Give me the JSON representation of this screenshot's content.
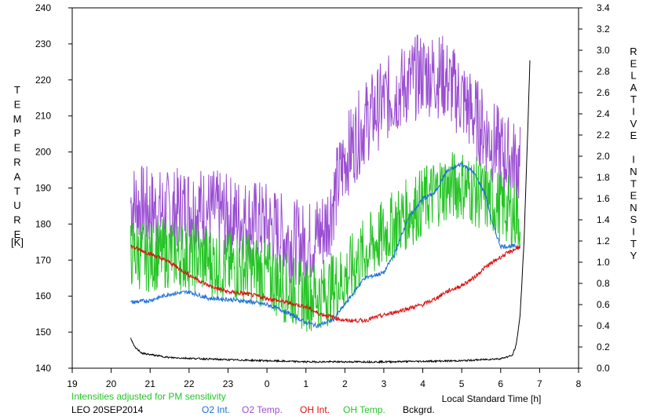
{
  "chart_data": {
    "type": "line",
    "left_axis": {
      "label": "TEMPERATURE",
      "unit": "[K]",
      "range": [
        140,
        240
      ],
      "ticks": [
        "140",
        "150",
        "160",
        "170",
        "180",
        "190",
        "200",
        "210",
        "220",
        "230",
        "240"
      ]
    },
    "right_axis": {
      "label": "RELATIVE INTENSITY",
      "range": [
        0.0,
        3.4
      ],
      "ticks": [
        "0.0",
        "0.2",
        "0.4",
        "0.6",
        "0.8",
        "1.0",
        "1.2",
        "1.4",
        "1.6",
        "1.8",
        "2.0",
        "2.2",
        "2.4",
        "2.6",
        "2.8",
        "3.0",
        "3.2",
        "3.4"
      ]
    },
    "x_axis": {
      "label": "Local Standard Time [h]",
      "ticks": [
        "19",
        "20",
        "21",
        "22",
        "23",
        "0",
        "1",
        "2",
        "3",
        "4",
        "5",
        "6",
        "7",
        "8"
      ]
    },
    "note": "Intensities adjusted for PM sensitivity",
    "station": "LEO 20SEP2014",
    "legend": [
      {
        "name": "O2 Int.",
        "color": "#1c6fd6"
      },
      {
        "name": "O2 Temp.",
        "color": "#9b4fd2"
      },
      {
        "name": "OH Int.",
        "color": "#dd1010"
      },
      {
        "name": "OH Temp.",
        "color": "#26c426"
      },
      {
        "name": "Bckgrd.",
        "color": "#000000"
      }
    ],
    "series": [
      {
        "name": "O2 Temp.",
        "axis": "left",
        "color": "#9b4fd2",
        "x": [
          20.5,
          21.0,
          21.5,
          22.0,
          22.5,
          23.0,
          23.5,
          24.0,
          24.5,
          25.0,
          25.5,
          26.0,
          26.5,
          27.0,
          27.5,
          28.0,
          28.5,
          29.0,
          29.5,
          30.0,
          30.5
        ],
        "y": [
          186,
          184,
          183,
          185,
          184,
          182,
          181,
          180,
          176,
          174,
          179,
          198,
          208,
          214,
          218,
          222,
          221,
          215,
          207,
          200,
          196
        ],
        "noise": 12
      },
      {
        "name": "OH Temp.",
        "axis": "left",
        "color": "#26c426",
        "x": [
          20.5,
          21.0,
          21.5,
          22.0,
          22.5,
          23.0,
          23.5,
          24.0,
          24.5,
          25.0,
          25.5,
          26.0,
          26.5,
          27.0,
          27.5,
          28.0,
          28.5,
          29.0,
          29.5,
          30.0,
          30.5
        ],
        "y": [
          172,
          171,
          172,
          171,
          170,
          168,
          168,
          166,
          162,
          160,
          161,
          165,
          172,
          177,
          182,
          186,
          190,
          191,
          188,
          185,
          182
        ],
        "noise": 10
      },
      {
        "name": "O2 Int.",
        "axis": "right",
        "color": "#1c6fd6",
        "x": [
          20.5,
          21.0,
          21.5,
          22.0,
          22.5,
          23.0,
          23.5,
          24.0,
          24.5,
          25.0,
          25.3,
          25.7,
          26.0,
          26.3,
          26.5,
          27.0,
          27.3,
          27.6,
          28.0,
          28.3,
          28.6,
          29.0,
          29.3,
          29.6,
          29.8,
          30.0,
          30.5
        ],
        "y": [
          0.62,
          0.64,
          0.7,
          0.72,
          0.66,
          0.65,
          0.63,
          0.6,
          0.53,
          0.43,
          0.4,
          0.46,
          0.6,
          0.75,
          0.85,
          0.9,
          1.1,
          1.4,
          1.6,
          1.65,
          1.85,
          1.93,
          1.85,
          1.65,
          1.35,
          1.15,
          1.15
        ],
        "noise": 0.02
      },
      {
        "name": "OH Int.",
        "axis": "right",
        "color": "#dd1010",
        "x": [
          20.5,
          21.0,
          21.5,
          22.0,
          22.5,
          23.0,
          23.5,
          24.0,
          24.5,
          25.0,
          25.3,
          25.7,
          26.0,
          26.5,
          27.0,
          27.5,
          28.0,
          28.3,
          28.6,
          29.0,
          29.3,
          29.6,
          30.0,
          30.5
        ],
        "y": [
          1.15,
          1.08,
          1.0,
          0.88,
          0.78,
          0.72,
          0.7,
          0.66,
          0.62,
          0.58,
          0.52,
          0.48,
          0.45,
          0.45,
          0.5,
          0.55,
          0.6,
          0.65,
          0.72,
          0.78,
          0.85,
          0.95,
          1.05,
          1.15
        ],
        "noise": 0.02
      },
      {
        "name": "Bckgrd.",
        "axis": "right",
        "color": "#000000",
        "x": [
          20.5,
          20.6,
          20.8,
          21.5,
          23.0,
          25.0,
          27.0,
          29.0,
          30.0,
          30.3,
          30.4,
          30.5,
          30.6,
          30.7,
          30.75
        ],
        "y": [
          0.28,
          0.2,
          0.14,
          0.1,
          0.08,
          0.06,
          0.06,
          0.07,
          0.09,
          0.12,
          0.22,
          0.5,
          1.2,
          2.3,
          2.9
        ],
        "noise": 0.008
      }
    ]
  }
}
